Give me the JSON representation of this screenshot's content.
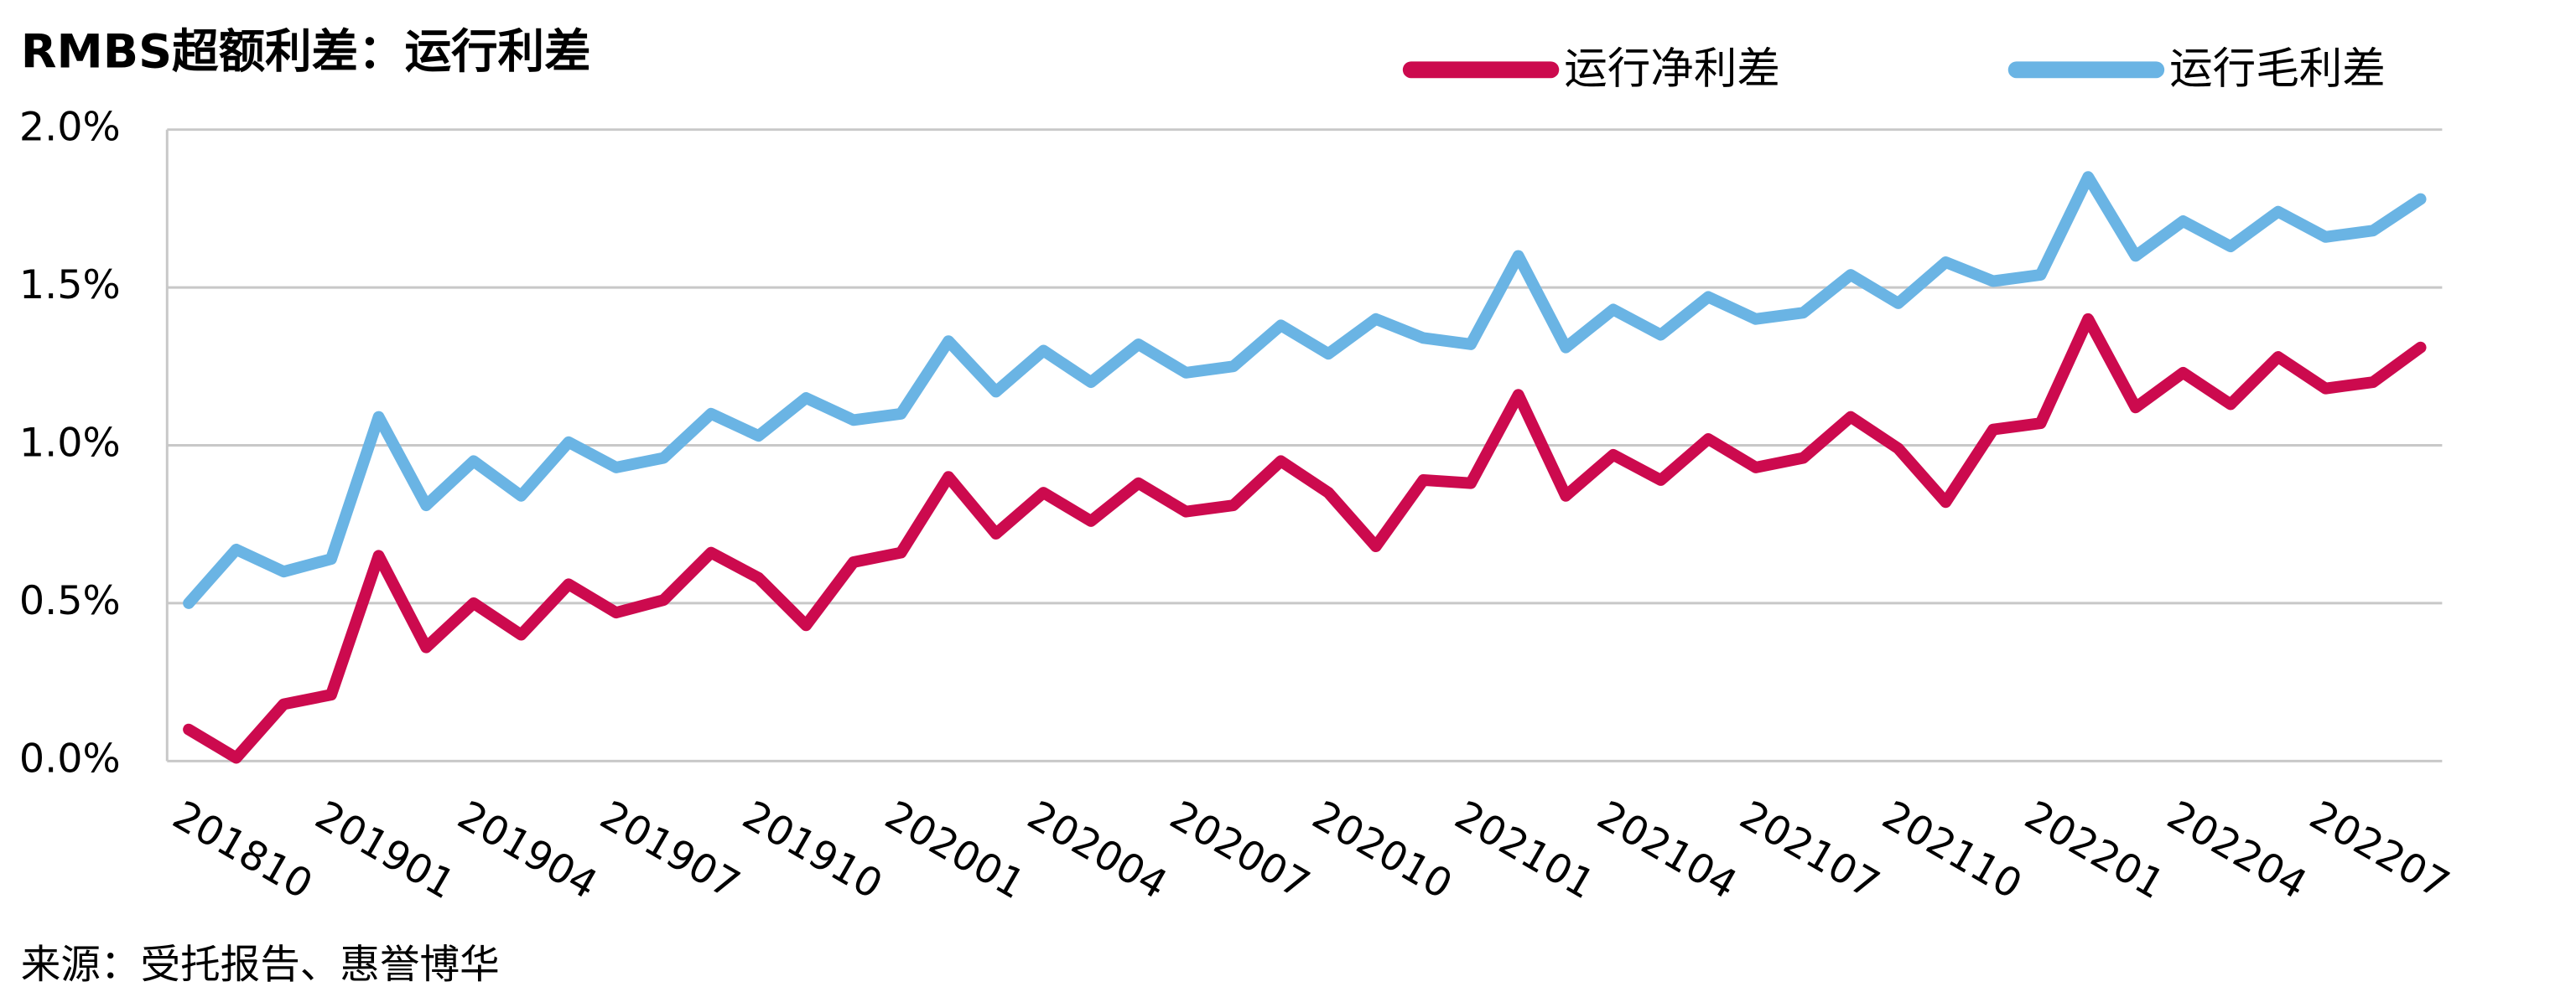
{
  "chart_data": {
    "type": "line",
    "title": "RMBS超额利差：运行利差",
    "source": "来源：受托报告、惠誉博华",
    "categories": [
      "201810",
      null,
      null,
      "201901",
      null,
      null,
      "201904",
      null,
      null,
      "201907",
      null,
      null,
      "201910",
      null,
      null,
      "202001",
      null,
      null,
      "202004",
      null,
      null,
      "202007",
      null,
      null,
      "202010",
      null,
      null,
      "202101",
      null,
      null,
      "202104",
      null,
      null,
      "202107",
      null,
      null,
      "202110",
      null,
      null,
      "202201",
      null,
      null,
      "202204",
      null,
      null,
      "202207",
      null,
      null
    ],
    "series": [
      {
        "name": "运行净利差",
        "color": "#cc0a4e",
        "values": [
          0.1,
          0.01,
          0.18,
          0.21,
          0.65,
          0.36,
          0.5,
          0.4,
          0.56,
          0.47,
          0.51,
          0.66,
          0.58,
          0.43,
          0.63,
          0.66,
          0.9,
          0.72,
          0.85,
          0.76,
          0.88,
          0.79,
          0.81,
          0.95,
          0.85,
          0.68,
          0.89,
          0.88,
          1.16,
          0.84,
          0.97,
          0.89,
          1.02,
          0.93,
          0.96,
          1.09,
          0.99,
          0.82,
          1.05,
          1.07,
          1.4,
          1.12,
          1.23,
          1.13,
          1.28,
          1.18,
          1.2,
          1.31
        ]
      },
      {
        "name": "运行毛利差",
        "color": "#6ab4e4",
        "values": [
          0.5,
          0.67,
          0.6,
          0.64,
          1.09,
          0.81,
          0.95,
          0.84,
          1.01,
          0.93,
          0.96,
          1.1,
          1.03,
          1.15,
          1.08,
          1.1,
          1.33,
          1.17,
          1.3,
          1.2,
          1.32,
          1.23,
          1.25,
          1.38,
          1.29,
          1.4,
          1.34,
          1.32,
          1.6,
          1.31,
          1.43,
          1.35,
          1.47,
          1.4,
          1.42,
          1.54,
          1.45,
          1.58,
          1.52,
          1.54,
          1.85,
          1.6,
          1.71,
          1.63,
          1.74,
          1.66,
          1.68,
          1.78
        ]
      }
    ],
    "ylim": [
      0,
      2
    ],
    "yticks": [
      {
        "value": 0,
        "label": "0.0%"
      },
      {
        "value": 0.5,
        "label": "0.5%"
      },
      {
        "value": 1,
        "label": "1.0%"
      },
      {
        "value": 1.5,
        "label": "1.5%"
      },
      {
        "value": 2,
        "label": "2.0%"
      }
    ],
    "grid": true
  }
}
